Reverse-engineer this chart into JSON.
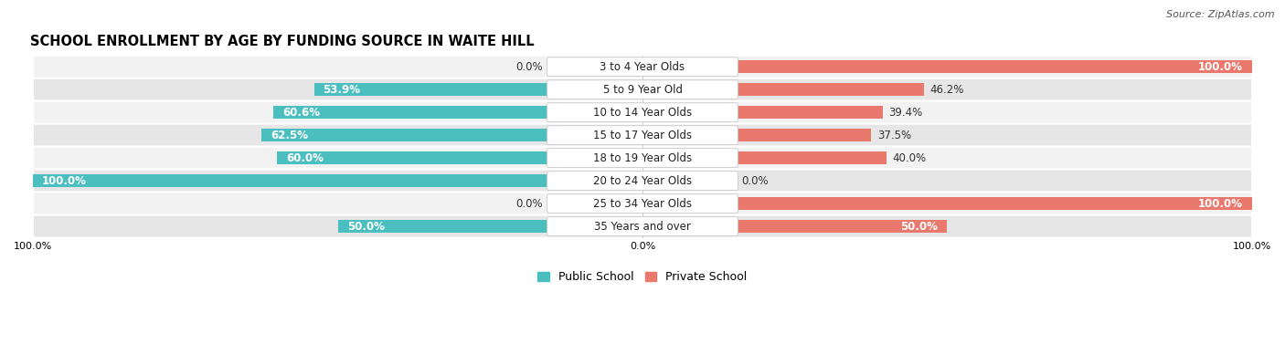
{
  "title": "SCHOOL ENROLLMENT BY AGE BY FUNDING SOURCE IN WAITE HILL",
  "source": "Source: ZipAtlas.com",
  "categories": [
    "3 to 4 Year Olds",
    "5 to 9 Year Old",
    "10 to 14 Year Olds",
    "15 to 17 Year Olds",
    "18 to 19 Year Olds",
    "20 to 24 Year Olds",
    "25 to 34 Year Olds",
    "35 Years and over"
  ],
  "public_pct": [
    0.0,
    53.9,
    60.6,
    62.5,
    60.0,
    100.0,
    0.0,
    50.0
  ],
  "private_pct": [
    100.0,
    46.2,
    39.4,
    37.5,
    40.0,
    0.0,
    100.0,
    50.0
  ],
  "public_color": "#4bbfbf",
  "private_color": "#e8796c",
  "public_color_light": "#aadede",
  "private_color_light": "#f0b8b2",
  "row_bg_color_light": "#f2f2f2",
  "row_bg_color_dark": "#e6e6e6",
  "label_fontsize": 8.5,
  "title_fontsize": 10.5,
  "legend_fontsize": 9,
  "axis_label_fontsize": 8,
  "xlim": [
    -100,
    100
  ],
  "bar_height": 0.58
}
